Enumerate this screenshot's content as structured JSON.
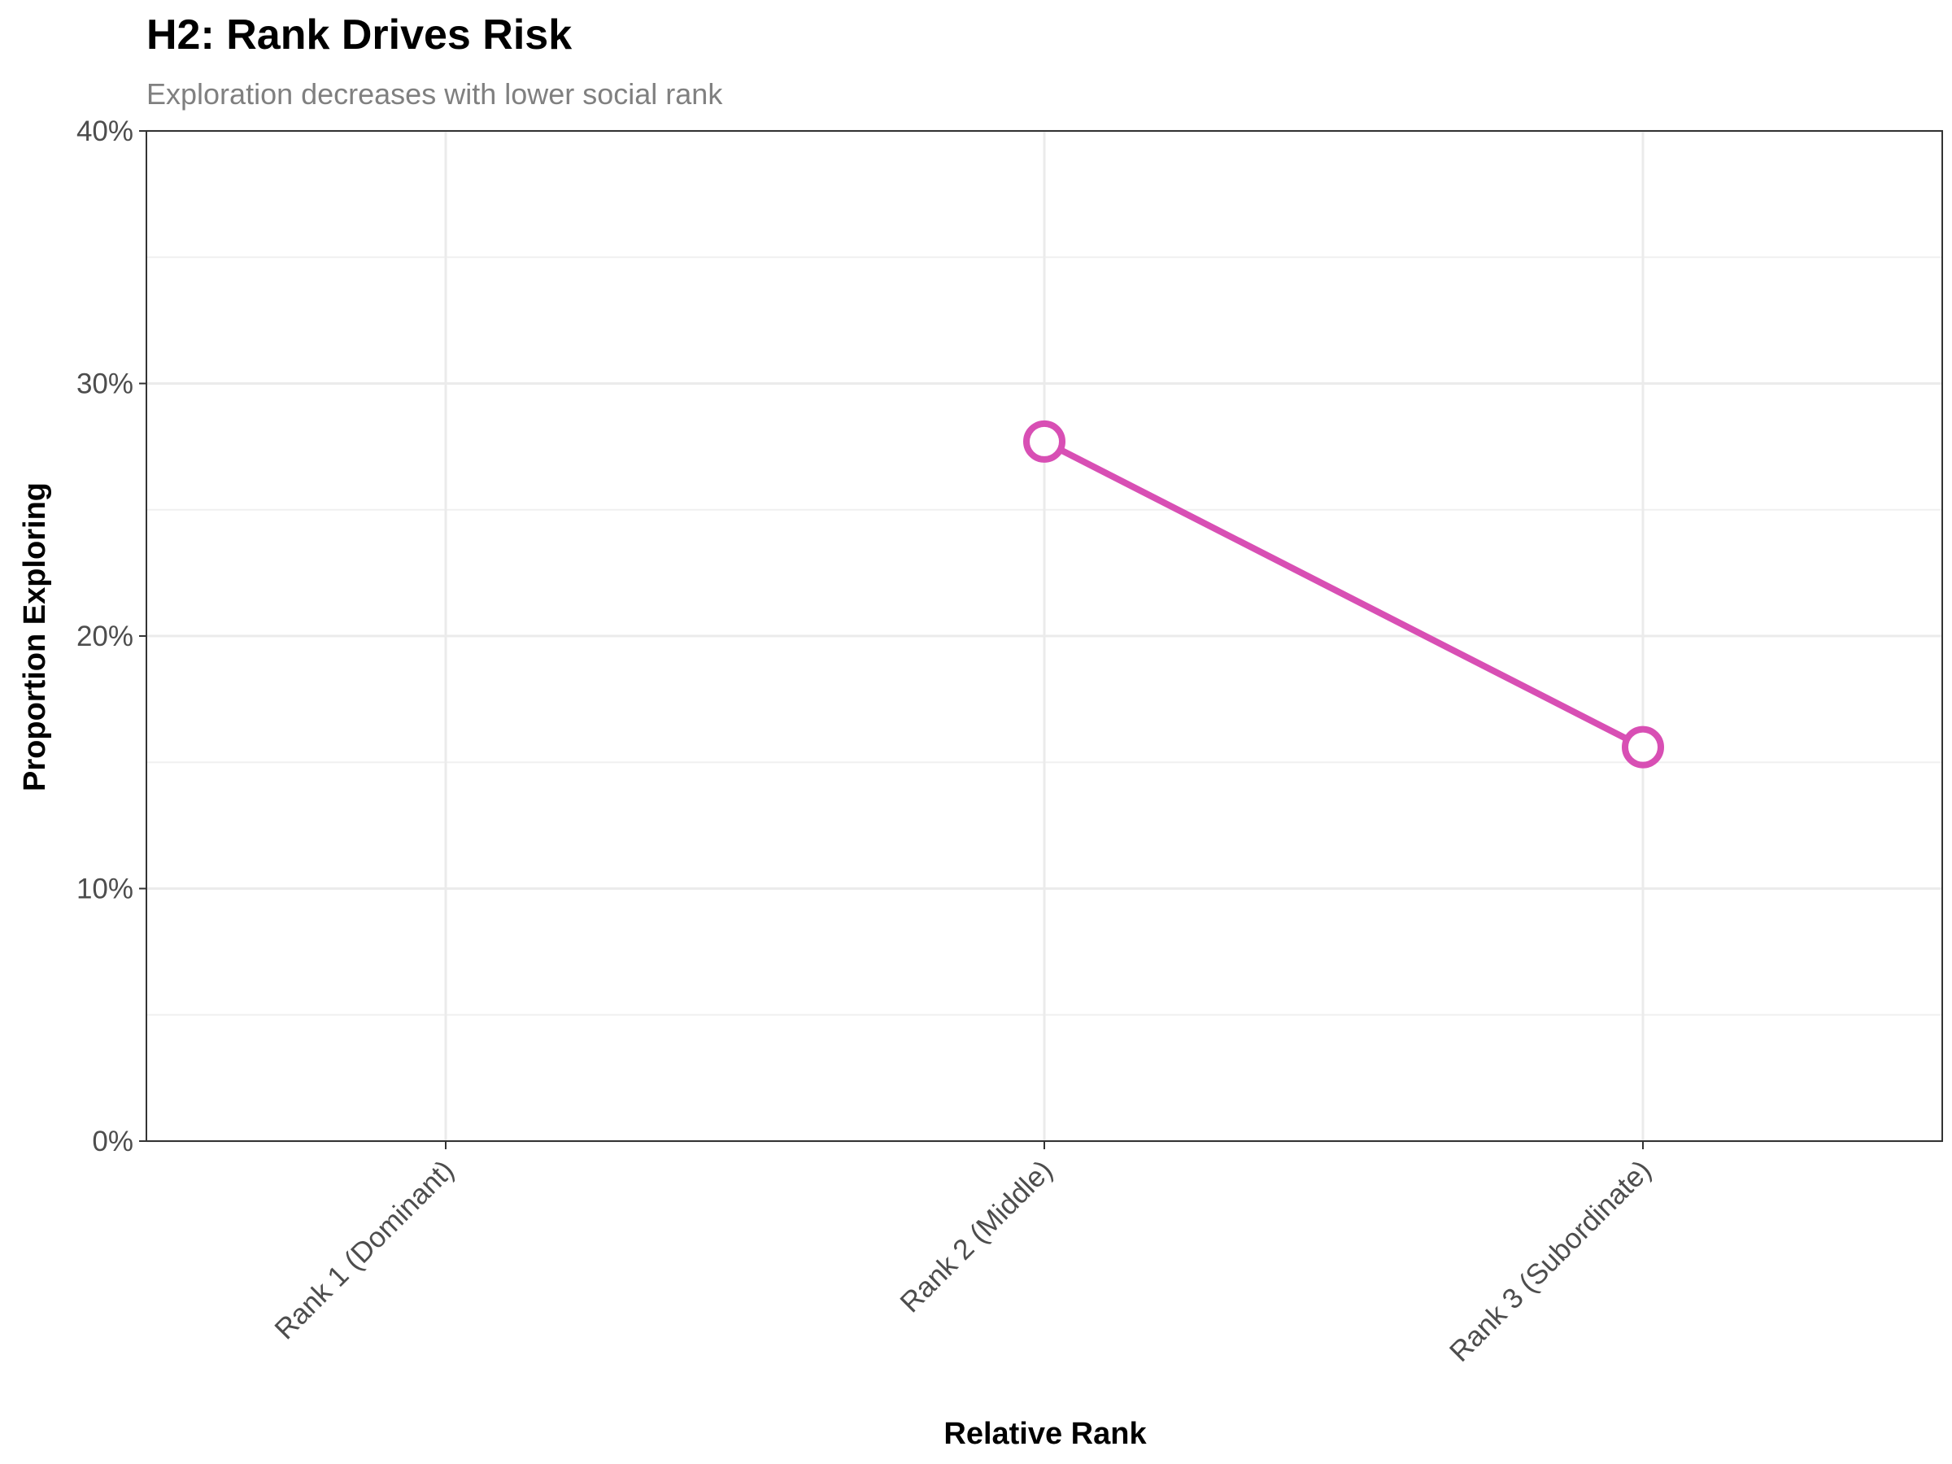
{
  "chart_data": {
    "type": "line",
    "title": "H2: Rank Drives Risk",
    "subtitle": "Exploration decreases with lower social rank",
    "xlabel": "Relative Rank",
    "ylabel": "Proportion Exploring",
    "categories": [
      "Rank 1 (Dominant)",
      "Rank 2 (Middle)",
      "Rank 3 (Subordinate)"
    ],
    "y_ticks": [
      0,
      0.1,
      0.2,
      0.3,
      0.4
    ],
    "y_tick_labels": [
      "0%",
      "10%",
      "20%",
      "30%",
      "40%"
    ],
    "ylim": [
      0,
      0.4
    ],
    "grid": true,
    "series": [
      {
        "values": [
          null,
          0.277,
          0.156
        ],
        "color": "#d84fb4"
      }
    ]
  }
}
